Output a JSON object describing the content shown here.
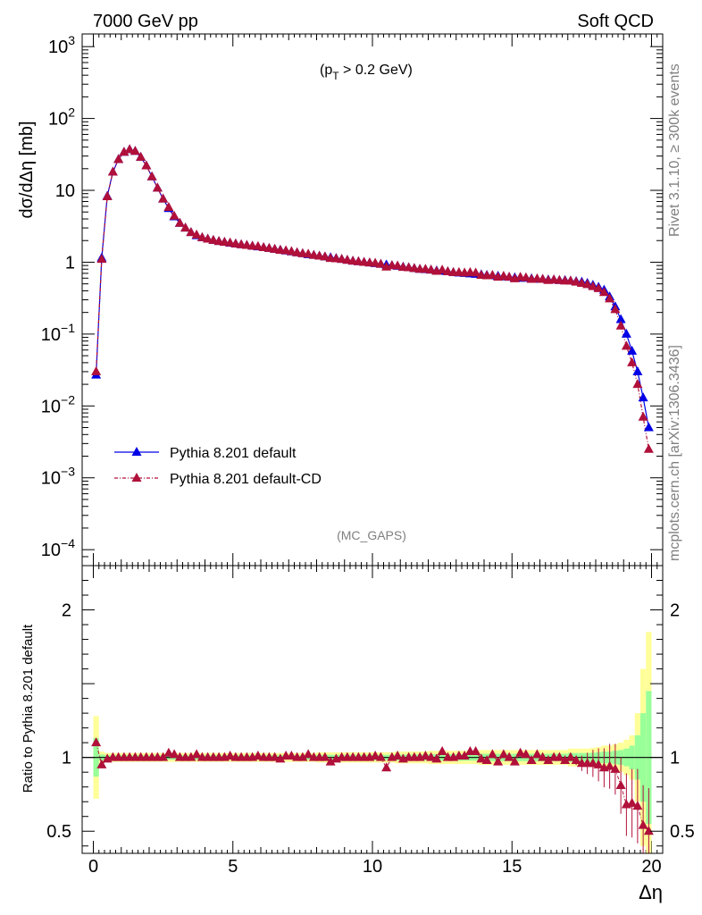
{
  "header": {
    "left": "7000 GeV pp",
    "right": "Soft QCD"
  },
  "side_labels": {
    "rivet": "Rivet 3.1.10, ≥ 300k events",
    "mcplots": "mcplots.cern.ch [arXiv:1306.3436]"
  },
  "colors": {
    "default": "#0000e6",
    "cd": "#b0103a",
    "band_yellow": "#ffff99",
    "band_green": "#99ff99"
  },
  "chart_data": [
    {
      "type": "line",
      "panel": "main",
      "annotation": "(p_T > 0.2 GeV)",
      "watermark": "(MC_GAPS)",
      "ylabel": "dσ/dΔη [mb]",
      "yscale": "log",
      "ylim": [
        6e-05,
        1500
      ],
      "xlim": [
        -0.4,
        20.4
      ],
      "yticks": [
        "10^{-4}",
        "10^{-3}",
        "10^{-2}",
        "10^{-1}",
        "1",
        "10",
        "10^{2}",
        "10^{3}"
      ],
      "legend_position": "bottom-left",
      "x": [
        0.1,
        0.3,
        0.5,
        0.7,
        0.9,
        1.1,
        1.3,
        1.5,
        1.7,
        1.9,
        2.1,
        2.3,
        2.5,
        2.7,
        2.9,
        3.1,
        3.3,
        3.5,
        3.7,
        3.9,
        4.1,
        4.3,
        4.5,
        4.7,
        4.9,
        5.1,
        5.3,
        5.5,
        5.7,
        5.9,
        6.1,
        6.3,
        6.5,
        6.7,
        6.9,
        7.1,
        7.3,
        7.5,
        7.7,
        7.9,
        8.1,
        8.3,
        8.5,
        8.7,
        8.9,
        9.1,
        9.3,
        9.5,
        9.7,
        9.9,
        10.1,
        10.3,
        10.5,
        10.7,
        10.9,
        11.1,
        11.3,
        11.5,
        11.7,
        11.9,
        12.1,
        12.3,
        12.5,
        12.7,
        12.9,
        13.1,
        13.3,
        13.5,
        13.7,
        13.9,
        14.1,
        14.3,
        14.5,
        14.7,
        14.9,
        15.1,
        15.3,
        15.5,
        15.7,
        15.9,
        16.1,
        16.3,
        16.5,
        16.7,
        16.9,
        17.1,
        17.3,
        17.5,
        17.7,
        17.9,
        18.1,
        18.3,
        18.5,
        18.7,
        18.9,
        19.1,
        19.3,
        19.5,
        19.7,
        19.9
      ],
      "series": [
        {
          "name": "Pythia 8.201 default",
          "values": [
            0.027,
            1.15,
            8.3,
            18,
            27,
            34,
            37,
            35,
            29,
            22,
            15.5,
            10.8,
            7.6,
            5.6,
            4.3,
            3.5,
            3.0,
            2.6,
            2.35,
            2.2,
            2.1,
            2.02,
            1.95,
            1.9,
            1.85,
            1.8,
            1.76,
            1.72,
            1.68,
            1.64,
            1.6,
            1.56,
            1.52,
            1.48,
            1.44,
            1.4,
            1.36,
            1.32,
            1.28,
            1.25,
            1.22,
            1.19,
            1.16,
            1.13,
            1.1,
            1.07,
            1.04,
            1.02,
            1.0,
            0.98,
            0.96,
            0.94,
            0.92,
            0.9,
            0.88,
            0.86,
            0.84,
            0.82,
            0.8,
            0.79,
            0.78,
            0.76,
            0.75,
            0.74,
            0.72,
            0.71,
            0.7,
            0.69,
            0.68,
            0.67,
            0.66,
            0.65,
            0.64,
            0.63,
            0.62,
            0.61,
            0.6,
            0.6,
            0.59,
            0.58,
            0.58,
            0.57,
            0.57,
            0.56,
            0.56,
            0.55,
            0.54,
            0.53,
            0.51,
            0.48,
            0.45,
            0.41,
            0.33,
            0.24,
            0.16,
            0.1,
            0.058,
            0.03,
            0.013,
            0.005
          ]
        },
        {
          "name": "Pythia 8.201 default-CD",
          "values": [
            0.03,
            1.1,
            8.2,
            18,
            27,
            34,
            37,
            35,
            29,
            22,
            15.5,
            10.8,
            7.6,
            5.8,
            4.4,
            3.5,
            3.0,
            2.6,
            2.4,
            2.2,
            2.1,
            2.02,
            1.95,
            1.9,
            1.86,
            1.8,
            1.76,
            1.72,
            1.68,
            1.66,
            1.6,
            1.56,
            1.52,
            1.47,
            1.45,
            1.41,
            1.36,
            1.32,
            1.3,
            1.25,
            1.22,
            1.19,
            1.13,
            1.12,
            1.1,
            1.07,
            1.04,
            1.02,
            1.0,
            0.98,
            0.97,
            0.94,
            0.86,
            0.9,
            0.89,
            0.85,
            0.84,
            0.82,
            0.8,
            0.8,
            0.78,
            0.75,
            0.78,
            0.74,
            0.72,
            0.72,
            0.71,
            0.72,
            0.71,
            0.66,
            0.65,
            0.66,
            0.62,
            0.64,
            0.62,
            0.59,
            0.62,
            0.61,
            0.58,
            0.59,
            0.58,
            0.56,
            0.57,
            0.56,
            0.55,
            0.55,
            0.53,
            0.51,
            0.49,
            0.46,
            0.43,
            0.38,
            0.31,
            0.22,
            0.13,
            0.068,
            0.04,
            0.02,
            0.007,
            0.0025
          ]
        }
      ]
    },
    {
      "type": "scatter",
      "panel": "ratio",
      "ylabel": "Ratio to Pythia 8.201 default",
      "xlabel": "Δη",
      "ylim": [
        0.35,
        2.3
      ],
      "xlim": [
        -0.4,
        20.4
      ],
      "xticks": [
        0,
        5,
        10,
        15,
        20
      ],
      "yticks": [
        0.5,
        1,
        2
      ],
      "reference": 1.0,
      "ratio_cd": [
        1.1,
        0.95,
        0.99,
        1.0,
        1.0,
        1.0,
        1.0,
        1.0,
        1.0,
        1.0,
        1.0,
        1.0,
        1.0,
        1.03,
        1.02,
        1.0,
        1.0,
        1.0,
        1.02,
        1.0,
        1.0,
        1.0,
        1.0,
        1.0,
        1.01,
        1.0,
        1.0,
        1.0,
        1.0,
        1.01,
        1.0,
        1.0,
        1.0,
        0.99,
        1.01,
        1.01,
        1.0,
        1.0,
        1.02,
        1.0,
        1.0,
        1.0,
        0.97,
        0.99,
        1.0,
        1.0,
        1.0,
        1.0,
        1.0,
        1.0,
        1.01,
        1.0,
        0.93,
        1.0,
        1.01,
        0.99,
        1.0,
        1.0,
        1.0,
        1.01,
        1.0,
        0.99,
        1.04,
        1.0,
        1.0,
        1.01,
        1.01,
        1.04,
        1.04,
        0.99,
        0.98,
        1.02,
        0.97,
        1.02,
        1.0,
        0.97,
        1.03,
        1.02,
        0.98,
        1.02,
        1.0,
        0.98,
        1.0,
        1.0,
        0.98,
        1.0,
        0.98,
        0.96,
        0.96,
        0.96,
        0.95,
        0.93,
        0.94,
        0.92,
        0.81,
        0.68,
        0.69,
        0.67,
        0.54,
        0.5
      ],
      "band_yellow_halfwidth": [
        0.28,
        0.04,
        0.03,
        0.03,
        0.03,
        0.03,
        0.03,
        0.03,
        0.03,
        0.03,
        0.03,
        0.03,
        0.03,
        0.03,
        0.03,
        0.03,
        0.03,
        0.03,
        0.03,
        0.03,
        0.03,
        0.03,
        0.03,
        0.03,
        0.03,
        0.03,
        0.03,
        0.03,
        0.03,
        0.03,
        0.03,
        0.03,
        0.03,
        0.03,
        0.03,
        0.03,
        0.03,
        0.03,
        0.03,
        0.03,
        0.035,
        0.035,
        0.035,
        0.035,
        0.035,
        0.035,
        0.035,
        0.035,
        0.035,
        0.035,
        0.035,
        0.035,
        0.035,
        0.035,
        0.04,
        0.04,
        0.04,
        0.04,
        0.04,
        0.04,
        0.045,
        0.045,
        0.045,
        0.045,
        0.045,
        0.045,
        0.045,
        0.045,
        0.045,
        0.05,
        0.05,
        0.05,
        0.05,
        0.05,
        0.05,
        0.05,
        0.05,
        0.05,
        0.05,
        0.05,
        0.05,
        0.05,
        0.05,
        0.05,
        0.05,
        0.06,
        0.06,
        0.06,
        0.06,
        0.065,
        0.07,
        0.08,
        0.08,
        0.09,
        0.1,
        0.12,
        0.15,
        0.3,
        0.6,
        0.85
      ],
      "band_green_halfwidth": [
        0.13,
        0.02,
        0.015,
        0.015,
        0.015,
        0.015,
        0.015,
        0.015,
        0.015,
        0.015,
        0.015,
        0.015,
        0.015,
        0.015,
        0.015,
        0.015,
        0.015,
        0.015,
        0.015,
        0.015,
        0.015,
        0.015,
        0.015,
        0.015,
        0.015,
        0.015,
        0.015,
        0.015,
        0.015,
        0.015,
        0.015,
        0.015,
        0.015,
        0.015,
        0.015,
        0.015,
        0.015,
        0.015,
        0.015,
        0.015,
        0.018,
        0.018,
        0.018,
        0.018,
        0.018,
        0.018,
        0.018,
        0.018,
        0.018,
        0.018,
        0.018,
        0.018,
        0.018,
        0.018,
        0.02,
        0.02,
        0.02,
        0.02,
        0.02,
        0.02,
        0.022,
        0.022,
        0.022,
        0.022,
        0.022,
        0.022,
        0.022,
        0.022,
        0.022,
        0.025,
        0.025,
        0.025,
        0.025,
        0.025,
        0.025,
        0.025,
        0.025,
        0.025,
        0.025,
        0.025,
        0.025,
        0.025,
        0.025,
        0.025,
        0.025,
        0.03,
        0.03,
        0.03,
        0.03,
        0.032,
        0.035,
        0.04,
        0.04,
        0.045,
        0.05,
        0.06,
        0.08,
        0.15,
        0.3,
        0.45
      ]
    }
  ]
}
